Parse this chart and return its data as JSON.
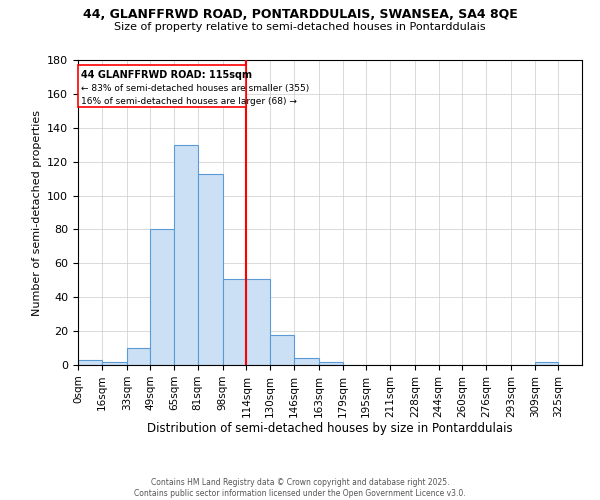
{
  "title_line1": "44, GLANFFRWD ROAD, PONTARDDULAIS, SWANSEA, SA4 8QE",
  "title_line2": "Size of property relative to semi-detached houses in Pontarddulais",
  "xlabel": "Distribution of semi-detached houses by size in Pontarddulais",
  "ylabel_full": "Number of semi-detached properties",
  "bin_edges": [
    0,
    16,
    33,
    49,
    65,
    81,
    98,
    114,
    130,
    146,
    163,
    179,
    195,
    211,
    228,
    244,
    260,
    276,
    293,
    309,
    325,
    341
  ],
  "bin_labels": [
    "0sqm",
    "16sqm",
    "33sqm",
    "49sqm",
    "65sqm",
    "81sqm",
    "98sqm",
    "114sqm",
    "130sqm",
    "146sqm",
    "163sqm",
    "179sqm",
    "195sqm",
    "211sqm",
    "228sqm",
    "244sqm",
    "260sqm",
    "276sqm",
    "293sqm",
    "309sqm",
    "325sqm"
  ],
  "counts": [
    3,
    2,
    10,
    80,
    130,
    113,
    51,
    51,
    18,
    4,
    2,
    0,
    0,
    0,
    0,
    0,
    0,
    0,
    0,
    2,
    0
  ],
  "property_line_x": 114,
  "bar_color": "#cce0f5",
  "bar_edge_color": "#5b9bd5",
  "vline_color": "red",
  "annotation_text_line1": "44 GLANFFRWD ROAD: 115sqm",
  "annotation_text_line2": "← 83% of semi-detached houses are smaller (355)",
  "annotation_text_line3": "16% of semi-detached houses are larger (68) →",
  "ylim": [
    0,
    180
  ],
  "yticks": [
    0,
    20,
    40,
    60,
    80,
    100,
    120,
    140,
    160,
    180
  ],
  "footer_text": "Contains HM Land Registry data © Crown copyright and database right 2025.\nContains public sector information licensed under the Open Government Licence v3.0."
}
